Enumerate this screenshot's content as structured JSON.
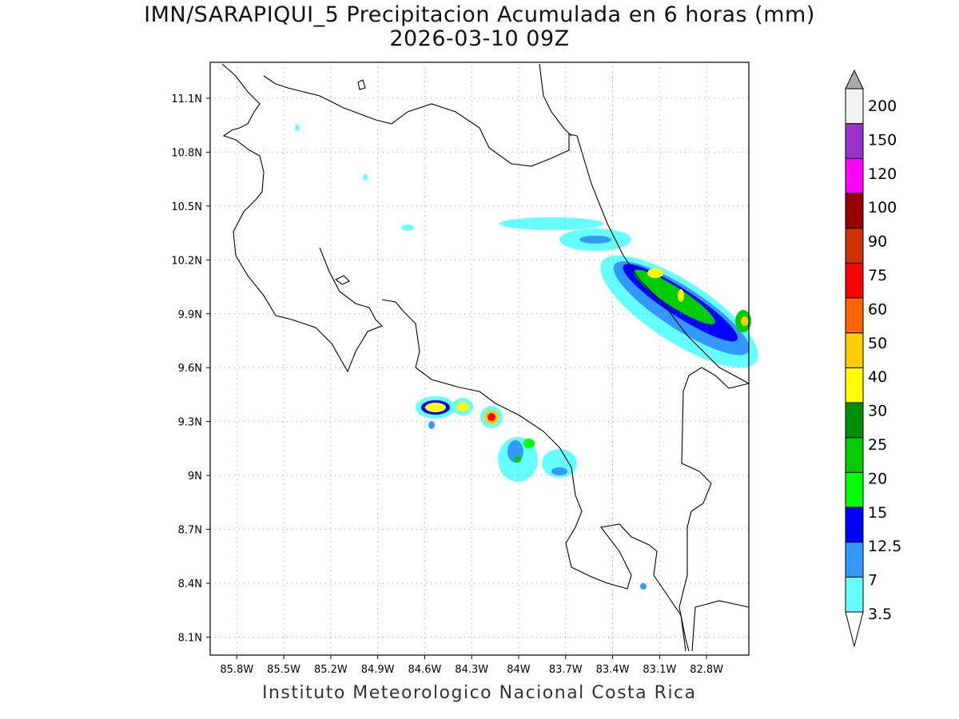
{
  "title": {
    "line1": "IMN/SARAPIQUI_5 Precipitacion Acumulada en 6 horas (mm)",
    "line2": "2026-03-10 09Z"
  },
  "footer": "Instituto Meteorologico Nacional Costa Rica",
  "map": {
    "lon_range": [
      -85.97,
      -82.53
    ],
    "lat_range": [
      8.0,
      11.3
    ],
    "lon_ticks": [
      {
        "value": -85.8,
        "label": "85.8W"
      },
      {
        "value": -85.5,
        "label": "85.5W"
      },
      {
        "value": -85.2,
        "label": "85.2W"
      },
      {
        "value": -84.9,
        "label": "84.9W"
      },
      {
        "value": -84.6,
        "label": "84.6W"
      },
      {
        "value": -84.3,
        "label": "84.3W"
      },
      {
        "value": -84.0,
        "label": "84W"
      },
      {
        "value": -83.7,
        "label": "83.7W"
      },
      {
        "value": -83.4,
        "label": "83.4W"
      },
      {
        "value": -83.1,
        "label": "83.1W"
      },
      {
        "value": -82.8,
        "label": "82.8W"
      }
    ],
    "lat_ticks": [
      {
        "value": 11.1,
        "label": "11.1N"
      },
      {
        "value": 10.8,
        "label": "10.8N"
      },
      {
        "value": 10.5,
        "label": "10.5N"
      },
      {
        "value": 10.2,
        "label": "10.2N"
      },
      {
        "value": 9.9,
        "label": "9.9N"
      },
      {
        "value": 9.6,
        "label": "9.6N"
      },
      {
        "value": 9.3,
        "label": "9.3N"
      },
      {
        "value": 9.0,
        "label": "9N"
      },
      {
        "value": 8.7,
        "label": "8.7N"
      },
      {
        "value": 8.4,
        "label": "8.4N"
      },
      {
        "value": 8.1,
        "label": "8.1N"
      }
    ]
  },
  "colorbar": {
    "levels": [
      "3.5",
      "7",
      "12.5",
      "15",
      "20",
      "25",
      "30",
      "40",
      "50",
      "60",
      "75",
      "90",
      "100",
      "120",
      "150",
      "200"
    ],
    "colors": [
      "#66ffff",
      "#3399ff",
      "#0000ff",
      "#00ff00",
      "#00cc00",
      "#008f00",
      "#ffff00",
      "#ffcc00",
      "#ff6600",
      "#ff0000",
      "#cc3300",
      "#990000",
      "#ff00ff",
      "#9933cc",
      "#f2f2f2"
    ],
    "over_color": "#aaaaaa",
    "under_color": "#ffffff"
  }
}
